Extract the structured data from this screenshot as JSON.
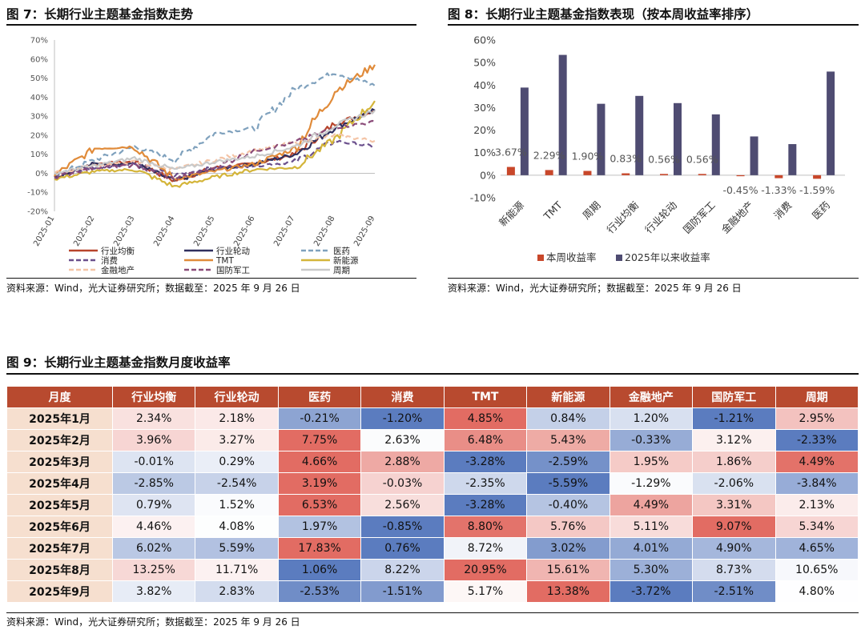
{
  "fig7": {
    "title": "图 7：长期行业主题基金指数走势",
    "source": "资料来源：Wind，光大证券研究所；数据截至：2025 年 9 月 26 日"
  },
  "fig8": {
    "title": "图 8：长期行业主题基金指数表现（按本周收益率排序）",
    "source": "资料来源：Wind，光大证券研究所；数据截至：2025 年 9 月 26 日"
  },
  "fig9": {
    "title": "图 9：长期行业主题基金指数月度收益率",
    "source": "资料来源：Wind，光大证券研究所；数据截至：2025 年 9 月 26 日",
    "headers": [
      "月度",
      "行业均衡",
      "行业轮动",
      "医药",
      "消费",
      "TMT",
      "新能源",
      "金融地产",
      "国防军工",
      "周期"
    ],
    "rows": [
      {
        "month": "2025年1月",
        "values": [
          "2.34%",
          "2.18%",
          "-0.21%",
          "-1.20%",
          "4.85%",
          "0.84%",
          "1.20%",
          "-1.21%",
          "2.95%"
        ]
      },
      {
        "month": "2025年2月",
        "values": [
          "3.96%",
          "3.27%",
          "7.75%",
          "2.63%",
          "6.48%",
          "5.43%",
          "-0.33%",
          "3.12%",
          "-2.33%"
        ]
      },
      {
        "month": "2025年3月",
        "values": [
          "-0.01%",
          "0.29%",
          "4.66%",
          "2.88%",
          "-3.28%",
          "-2.59%",
          "1.95%",
          "1.86%",
          "4.49%"
        ]
      },
      {
        "month": "2025年4月",
        "values": [
          "-2.85%",
          "-2.54%",
          "3.19%",
          "-0.03%",
          "-2.35%",
          "-5.59%",
          "-1.29%",
          "-2.06%",
          "-3.84%"
        ]
      },
      {
        "month": "2025年5月",
        "values": [
          "0.79%",
          "1.52%",
          "6.53%",
          "2.56%",
          "-3.28%",
          "-0.40%",
          "4.49%",
          "3.31%",
          "2.13%"
        ]
      },
      {
        "month": "2025年6月",
        "values": [
          "4.46%",
          "4.08%",
          "1.97%",
          "-0.85%",
          "8.80%",
          "5.76%",
          "5.11%",
          "9.07%",
          "5.34%"
        ]
      },
      {
        "month": "2025年7月",
        "values": [
          "6.02%",
          "5.59%",
          "17.83%",
          "0.76%",
          "8.72%",
          "3.02%",
          "4.01%",
          "4.90%",
          "4.65%"
        ]
      },
      {
        "month": "2025年8月",
        "values": [
          "13.25%",
          "11.71%",
          "1.06%",
          "8.22%",
          "20.95%",
          "15.61%",
          "5.30%",
          "8.73%",
          "10.65%"
        ]
      },
      {
        "month": "2025年9月",
        "values": [
          "3.82%",
          "2.83%",
          "-2.53%",
          "-1.51%",
          "5.17%",
          "13.38%",
          "-3.72%",
          "-2.51%",
          "4.80%"
        ]
      }
    ]
  },
  "chart_data": [
    {
      "type": "line",
      "title": "长期行业主题基金指数走势",
      "x_ticks": [
        "2025-01",
        "2025-02",
        "2025-03",
        "2025-04",
        "2025-05",
        "2025-06",
        "2025-07",
        "2025-08",
        "2025-09"
      ],
      "y_ticks": [
        "70%",
        "60%",
        "50%",
        "40%",
        "30%",
        "20%",
        "10%",
        "0%",
        "-10%",
        "-20%"
      ],
      "ylim": [
        -20,
        70
      ],
      "legend_position": "bottom",
      "series": [
        {
          "name": "行业均衡",
          "color": "#b8452c",
          "dash": "solid",
          "values": [
            -2,
            5,
            6,
            -4,
            3,
            5,
            10,
            26,
            33
          ]
        },
        {
          "name": "行业轮动",
          "color": "#2f2f5e",
          "dash": "solid",
          "values": [
            -2,
            5,
            5,
            -4,
            2,
            5,
            10,
            24,
            33
          ]
        },
        {
          "name": "医药",
          "color": "#7fa1bd",
          "dash": "dash",
          "values": [
            -1,
            7,
            14,
            7,
            21,
            24,
            44,
            53,
            46
          ]
        },
        {
          "name": "消费",
          "color": "#6a4f8c",
          "dash": "dash",
          "values": [
            -1,
            3,
            5,
            -1,
            3,
            4,
            6,
            17,
            14
          ]
        },
        {
          "name": "TMT",
          "color": "#e08b3a",
          "dash": "solid",
          "values": [
            -1,
            13,
            14,
            -3,
            1,
            5,
            13,
            43,
            57
          ]
        },
        {
          "name": "新能源",
          "color": "#d4b53a",
          "dash": "solid",
          "values": [
            -3,
            1,
            2,
            -7,
            -2,
            2,
            3,
            18,
            38
          ]
        },
        {
          "name": "金融地产",
          "color": "#f4c4a6",
          "dash": "dash",
          "values": [
            0,
            4,
            6,
            2,
            7,
            12,
            16,
            20,
            17
          ]
        },
        {
          "name": "国防军工",
          "color": "#8a4a78",
          "dash": "dash",
          "values": [
            -2,
            3,
            4,
            -3,
            3,
            12,
            16,
            24,
            27
          ]
        },
        {
          "name": "周期",
          "color": "#c9c9c9",
          "dash": "solid",
          "values": [
            0,
            4,
            8,
            2,
            6,
            9,
            14,
            25,
            33
          ]
        }
      ]
    },
    {
      "type": "bar",
      "title": "长期行业主题基金指数表现（按本周收益率排序）",
      "categories": [
        "新能源",
        "TMT",
        "周期",
        "行业均衡",
        "行业轮动",
        "国防军工",
        "金融地产",
        "消费",
        "医药"
      ],
      "ylim": [
        -10,
        60
      ],
      "y_ticks": [
        "60%",
        "50%",
        "40%",
        "30%",
        "20%",
        "10%",
        "0%",
        "-10%"
      ],
      "legend_position": "bottom",
      "series": [
        {
          "name": "本周收益率",
          "color": "#c8472a",
          "values": [
            3.67,
            2.29,
            1.9,
            0.83,
            0.56,
            0.56,
            -0.45,
            -1.33,
            -1.59
          ],
          "labels": [
            "3.67%",
            "2.29%",
            "1.90%",
            "0.83%",
            "0.56%",
            "0.56%",
            "-0.45%",
            "-1.33%",
            "-1.59%"
          ]
        },
        {
          "name": "2025年以来收益率",
          "color": "#4f4c72",
          "values": [
            38.9,
            53.4,
            31.7,
            35.2,
            32.0,
            27.0,
            17.2,
            13.8,
            46.0
          ]
        }
      ]
    }
  ]
}
